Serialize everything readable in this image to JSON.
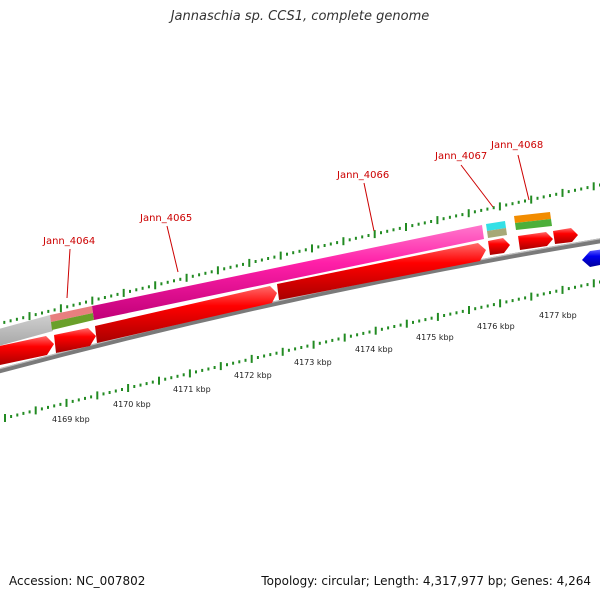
{
  "title": "Jannaschia sp. CCS1, complete genome",
  "footer": {
    "accession": "Accession: NC_007802",
    "summary": "Topology: circular; Length: 4,317,977 bp; Genes: 4,264"
  },
  "genes": [
    {
      "name": "Jann_4064"
    },
    {
      "name": "Jann_4065"
    },
    {
      "name": "Jann_4066"
    },
    {
      "name": "Jann_4067"
    },
    {
      "name": "Jann_4068"
    }
  ],
  "ticks": [
    "4169 kbp",
    "4170 kbp",
    "4171 kbp",
    "4172 kbp",
    "4173 kbp",
    "4174 kbp",
    "4175 kbp",
    "4176 kbp",
    "4177 kbp"
  ],
  "colors": {
    "forward_cds": "#ff0000",
    "reverse_cds": "#0000ee",
    "backbone": "#808080",
    "tick": "#228b22",
    "highlight_gene": "#ff22aa",
    "gene_label": "#cc0000"
  }
}
